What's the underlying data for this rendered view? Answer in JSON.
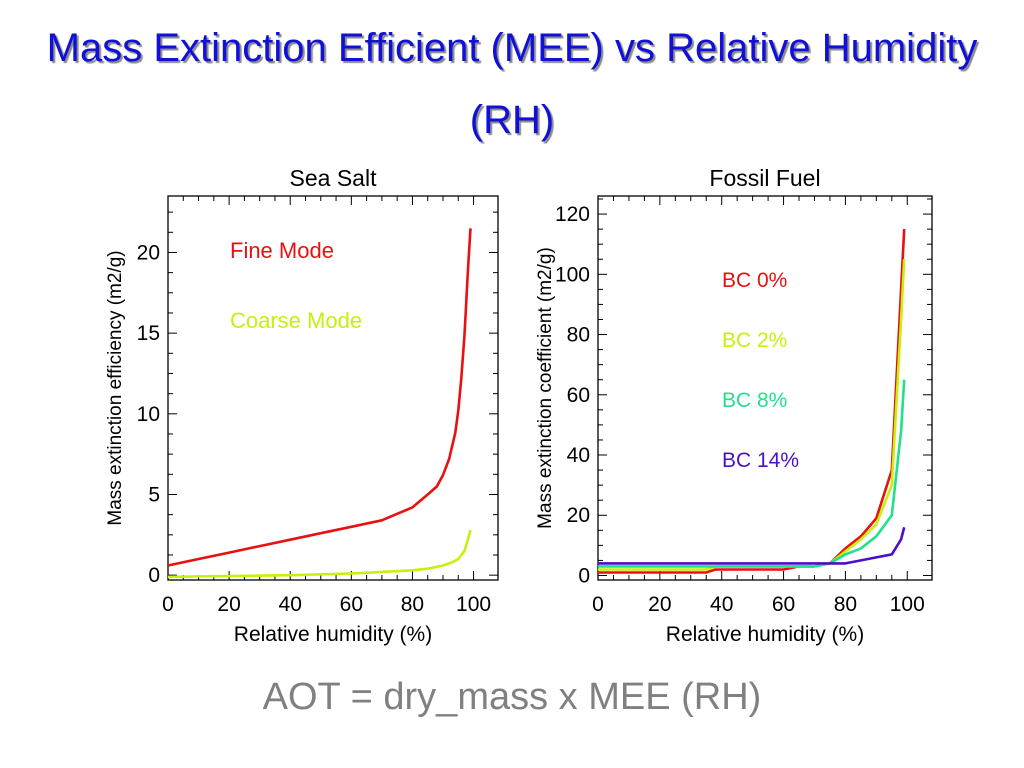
{
  "slide": {
    "title": "Mass Extinction Efficient (MEE) vs Relative Humidity (RH)",
    "formula": "AOT = dry_mass x MEE (RH)"
  },
  "chart_data": [
    {
      "type": "line",
      "title": "Sea Salt",
      "xlabel": "Relative humidity (%)",
      "ylabel": "Mass extinction efficiency (m2/g)",
      "xlim": [
        0,
        108
      ],
      "ylim": [
        -0.3,
        23.5
      ],
      "xticks": [
        0,
        20,
        40,
        60,
        80,
        100
      ],
      "yticks": [
        0,
        5,
        10,
        15,
        20
      ],
      "legend_placement": "in-plot text, upper-left",
      "series": [
        {
          "name": "Fine Mode",
          "color": "#e81010",
          "x": [
            0,
            10,
            20,
            30,
            40,
            50,
            60,
            70,
            75,
            80,
            85,
            88,
            90,
            92,
            94,
            95,
            96,
            97,
            97.5,
            98,
            98.5,
            99
          ],
          "y": [
            0.6,
            1.0,
            1.4,
            1.8,
            2.2,
            2.6,
            3.0,
            3.4,
            3.8,
            4.2,
            5.0,
            5.5,
            6.2,
            7.2,
            8.8,
            10.2,
            12.2,
            14.8,
            16.5,
            18.3,
            20.0,
            21.5
          ]
        },
        {
          "name": "Coarse Mode",
          "color": "#c4f20a",
          "x": [
            0,
            20,
            40,
            60,
            70,
            80,
            85,
            90,
            93,
            95,
            97,
            98,
            99
          ],
          "y": [
            -0.1,
            -0.05,
            0.0,
            0.1,
            0.2,
            0.3,
            0.4,
            0.6,
            0.8,
            1.0,
            1.5,
            2.1,
            2.8
          ]
        }
      ]
    },
    {
      "type": "line",
      "title": "Fossil Fuel",
      "xlabel": "Relative humidity (%)",
      "ylabel": "Mass extinction coefficient (m2/g)",
      "xlim": [
        0,
        108
      ],
      "ylim": [
        -1.5,
        126
      ],
      "xticks": [
        0,
        20,
        40,
        60,
        80,
        100
      ],
      "yticks": [
        0,
        20,
        40,
        60,
        80,
        100,
        120
      ],
      "legend_placement": "in-plot text, right",
      "series": [
        {
          "name": "BC 0%",
          "color": "#e81010",
          "x": [
            0,
            35,
            38,
            60,
            65,
            70,
            75,
            80,
            85,
            90,
            95,
            98,
            99
          ],
          "y": [
            1,
            1,
            2,
            2,
            3,
            3,
            4,
            9,
            13,
            19,
            35,
            95,
            115
          ]
        },
        {
          "name": "BC 2%",
          "color": "#c4f20a",
          "x": [
            0,
            35,
            38,
            60,
            65,
            70,
            75,
            80,
            85,
            90,
            95,
            98,
            99
          ],
          "y": [
            2,
            2,
            3,
            3,
            3,
            3,
            4,
            8,
            12,
            17,
            30,
            85,
            105
          ]
        },
        {
          "name": "BC 8%",
          "color": "#22e08c",
          "x": [
            0,
            70,
            75,
            80,
            85,
            90,
            95,
            98,
            99
          ],
          "y": [
            3,
            3,
            4,
            7,
            9,
            13,
            20,
            48,
            65
          ]
        },
        {
          "name": "BC 14%",
          "color": "#4a10c8",
          "x": [
            0,
            70,
            75,
            80,
            85,
            90,
            95,
            98,
            99
          ],
          "y": [
            4,
            4,
            4,
            4,
            5,
            6,
            7,
            12,
            16
          ]
        }
      ]
    }
  ]
}
